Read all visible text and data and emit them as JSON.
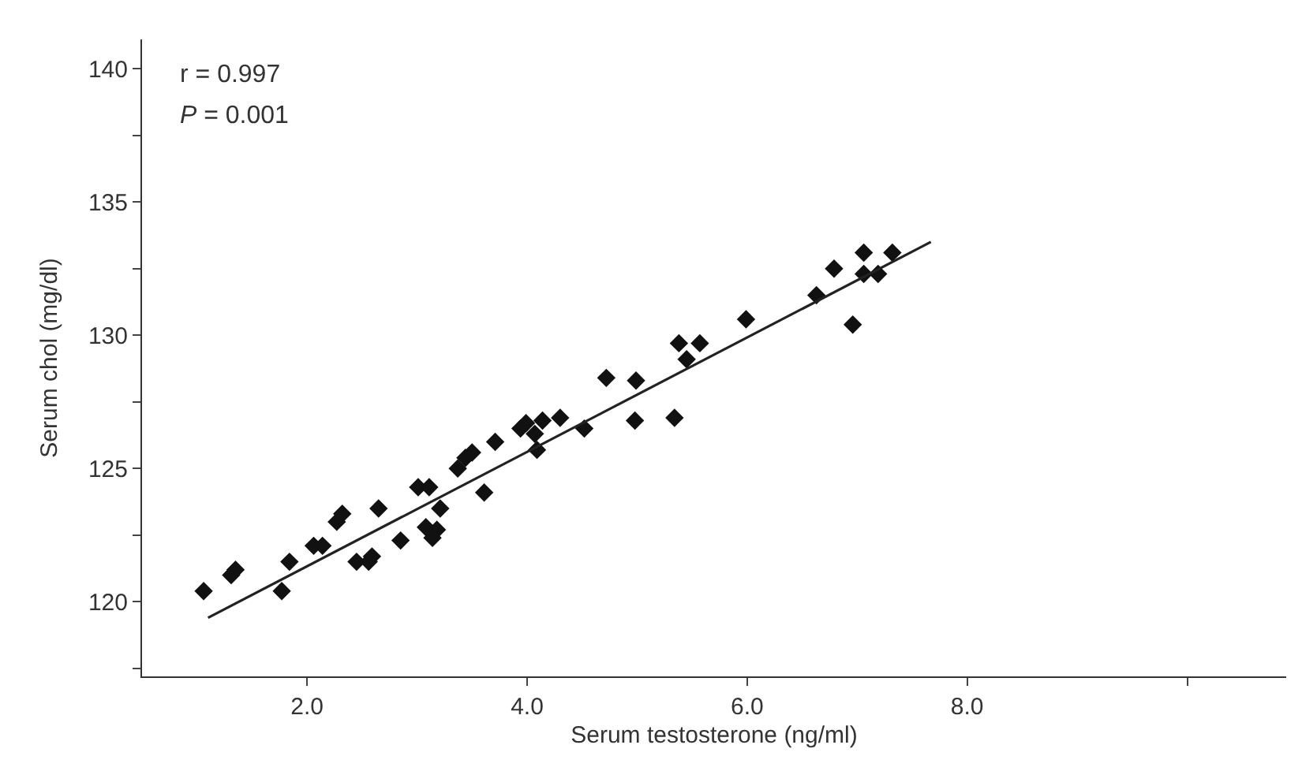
{
  "chart_data": {
    "type": "scatter",
    "xlabel": "Serum testosterone (ng/ml)",
    "ylabel": "Serum chol (mg/dl)",
    "annotations": [
      "r = 0.997",
      "P = 0.001"
    ],
    "series": [
      {
        "color": "#111111",
        "marker": "diamond",
        "x": [
          1.06,
          1.31,
          1.35,
          1.77,
          1.84,
          2.06,
          2.14,
          2.27,
          2.32,
          2.45,
          2.56,
          2.59,
          2.65,
          2.85,
          3.01,
          3.11,
          3.08,
          3.18,
          3.14,
          3.21,
          3.37,
          3.44,
          3.5,
          3.61,
          3.71,
          3.94,
          3.99,
          4.07,
          4.09,
          4.14,
          4.3,
          4.52,
          4.72,
          4.99,
          4.98,
          5.34,
          5.38,
          5.45,
          5.57,
          5.99,
          6.63,
          6.79,
          6.96,
          7.06,
          7.06,
          7.19,
          7.32
        ],
        "values": [
          120.4,
          121.0,
          121.2,
          120.4,
          121.5,
          122.1,
          122.1,
          123.0,
          123.3,
          121.5,
          121.5,
          121.7,
          123.5,
          122.3,
          124.3,
          124.3,
          122.8,
          122.7,
          122.4,
          123.5,
          125.0,
          125.4,
          125.6,
          124.1,
          126.0,
          126.5,
          126.7,
          126.3,
          125.7,
          126.8,
          126.9,
          126.5,
          128.4,
          128.3,
          126.8,
          126.9,
          129.7,
          129.1,
          129.7,
          130.6,
          131.5,
          132.5,
          130.4,
          133.1,
          132.3,
          132.3,
          133.1
        ]
      },
      {
        "type": "line",
        "color": "#222222",
        "x": [
          1.1,
          7.67
        ],
        "values": [
          119.4,
          133.5
        ]
      }
    ],
    "xlim": [
      0.5,
      10.9
    ],
    "ylim": [
      117.2,
      141.1
    ],
    "xticks": [
      {
        "value": 2,
        "label": "2.0"
      },
      {
        "value": 4,
        "label": "4.0"
      },
      {
        "value": 6,
        "label": "6.0"
      },
      {
        "value": 8,
        "label": "8.0"
      },
      {
        "value": 10,
        "label": null
      }
    ],
    "yticks": [
      {
        "value": 117.5,
        "label": null
      },
      120,
      {
        "value": 122.5,
        "label": null
      },
      125,
      {
        "value": 127.5,
        "label": null
      },
      130,
      {
        "value": 132.5,
        "label": null
      },
      135,
      {
        "value": 137.5,
        "label": null
      },
      140
    ]
  }
}
